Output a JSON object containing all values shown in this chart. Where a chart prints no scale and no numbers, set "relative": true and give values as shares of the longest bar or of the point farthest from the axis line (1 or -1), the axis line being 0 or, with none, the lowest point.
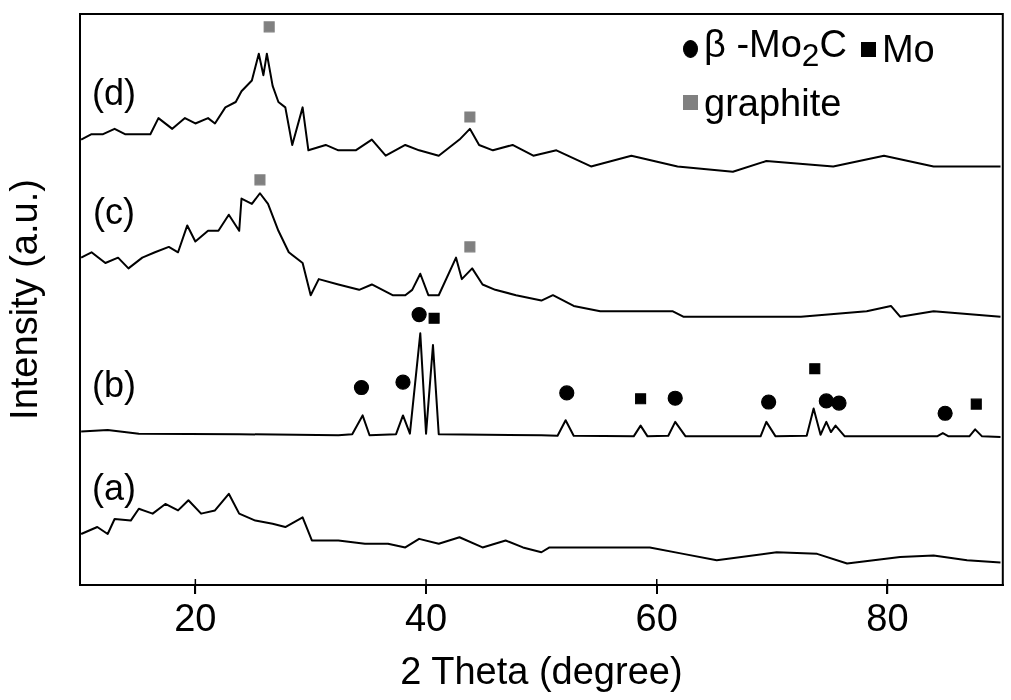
{
  "chart_data": {
    "type": "line",
    "xlabel": "2 Theta (degree)",
    "ylabel": "Intensity (a.u.)",
    "relative": true,
    "xlim": [
      10,
      90
    ],
    "xticks": [
      20,
      40,
      60,
      80
    ],
    "legend": "top right",
    "grid": false,
    "marker": "none",
    "line_style": "solid",
    "annotations": [
      "(d)",
      "(c)",
      "(b)",
      "(a)"
    ],
    "series": [
      {
        "color": "#000000",
        "x": [
          10.1,
          11.0,
          12.0,
          13.0,
          13.9,
          15.1,
          16.1,
          16.8,
          18.0,
          19.1,
          20.0,
          21.1,
          21.7,
          22.6,
          23.5,
          24.0,
          24.9,
          25.5,
          25.9,
          26.2,
          26.7,
          27.2,
          27.8,
          28.4,
          29.3,
          29.8,
          31.3,
          32.4,
          33.9,
          35.3,
          36.5,
          38.2,
          39.4,
          41.1,
          42.9,
          43.8,
          44.6,
          45.8,
          47.5,
          49.3,
          51.3,
          54.3,
          57.8,
          61.8,
          66.6,
          69.5,
          75.3,
          79.7,
          84.0,
          89.8
        ],
        "values": [
          0.79,
          0.8,
          0.8,
          0.81,
          0.8,
          0.8,
          0.8,
          0.83,
          0.81,
          0.83,
          0.82,
          0.83,
          0.82,
          0.85,
          0.86,
          0.88,
          0.9,
          0.95,
          0.91,
          0.95,
          0.89,
          0.86,
          0.85,
          0.78,
          0.85,
          0.77,
          0.78,
          0.77,
          0.77,
          0.79,
          0.76,
          0.78,
          0.77,
          0.76,
          0.79,
          0.81,
          0.78,
          0.77,
          0.78,
          0.76,
          0.77,
          0.74,
          0.76,
          0.74,
          0.73,
          0.75,
          0.74,
          0.76,
          0.74,
          0.74
        ]
      },
      {
        "color": "#000000",
        "x": [
          10.1,
          11.0,
          12.2,
          13.3,
          14.2,
          15.4,
          16.5,
          17.7,
          18.5,
          19.3,
          20.0,
          21.1,
          22.0,
          22.9,
          23.8,
          24.0,
          24.9,
          25.6,
          26.3,
          27.2,
          28.1,
          29.3,
          30.0,
          30.7,
          32.4,
          34.2,
          35.3,
          37.1,
          38.2,
          38.8,
          39.5,
          40.2,
          41.1,
          42.6,
          43.1,
          44.0,
          44.9,
          46.0,
          47.8,
          50.0,
          51.0,
          52.8,
          55.1,
          56.2,
          57.9,
          61.4,
          62.3,
          66.6,
          72.5,
          78.2,
          80.3,
          81.1,
          84.0,
          89.8
        ],
        "values": [
          0.57,
          0.58,
          0.56,
          0.57,
          0.55,
          0.57,
          0.58,
          0.59,
          0.58,
          0.63,
          0.6,
          0.62,
          0.62,
          0.65,
          0.62,
          0.68,
          0.67,
          0.69,
          0.67,
          0.62,
          0.58,
          0.56,
          0.5,
          0.53,
          0.52,
          0.51,
          0.52,
          0.5,
          0.5,
          0.51,
          0.54,
          0.5,
          0.5,
          0.57,
          0.53,
          0.55,
          0.52,
          0.51,
          0.5,
          0.49,
          0.5,
          0.48,
          0.47,
          0.47,
          0.47,
          0.47,
          0.46,
          0.46,
          0.46,
          0.47,
          0.48,
          0.46,
          0.47,
          0.46
        ]
      },
      {
        "color": "#000000",
        "x": [
          10.1,
          12.4,
          15.1,
          23.8,
          32.4,
          33.6,
          34.5,
          35.1,
          37.4,
          38.0,
          38.6,
          39.5,
          40.0,
          40.6,
          41.1,
          50.0,
          51.4,
          52.1,
          52.8,
          58.0,
          58.6,
          59.2,
          61.0,
          61.6,
          62.5,
          69.0,
          69.5,
          70.3,
          73.0,
          73.6,
          74.2,
          74.7,
          75.1,
          75.5,
          76.3,
          84.3,
          84.8,
          85.3,
          87.1,
          87.6,
          88.2,
          89.8
        ],
        "values": [
          0.246,
          0.249,
          0.242,
          0.241,
          0.239,
          0.241,
          0.276,
          0.239,
          0.241,
          0.276,
          0.242,
          0.429,
          0.242,
          0.407,
          0.241,
          0.239,
          0.238,
          0.267,
          0.238,
          0.237,
          0.257,
          0.237,
          0.238,
          0.264,
          0.237,
          0.237,
          0.264,
          0.237,
          0.238,
          0.289,
          0.24,
          0.264,
          0.245,
          0.257,
          0.237,
          0.237,
          0.243,
          0.237,
          0.237,
          0.25,
          0.237,
          0.236
        ]
      },
      {
        "color": "#000000",
        "x": [
          10.1,
          11.5,
          12.4,
          13.0,
          14.4,
          15.1,
          16.3,
          17.4,
          18.5,
          19.4,
          20.5,
          21.7,
          22.9,
          23.8,
          25.2,
          26.7,
          27.8,
          29.3,
          30.1,
          32.4,
          34.7,
          36.7,
          38.2,
          39.4,
          41.1,
          42.9,
          44.9,
          46.9,
          48.4,
          50.0,
          50.7,
          54.5,
          59.4,
          62.3,
          65.2,
          70.4,
          73.9,
          76.5,
          81.1,
          84.0,
          86.9,
          89.8
        ],
        "values": [
          0.055,
          0.068,
          0.055,
          0.083,
          0.08,
          0.102,
          0.093,
          0.111,
          0.099,
          0.118,
          0.093,
          0.099,
          0.13,
          0.093,
          0.08,
          0.074,
          0.068,
          0.086,
          0.043,
          0.043,
          0.037,
          0.037,
          0.03,
          0.046,
          0.037,
          0.049,
          0.03,
          0.043,
          0.03,
          0.021,
          0.03,
          0.03,
          0.03,
          0.018,
          0.006,
          0.021,
          0.018,
          0.0,
          0.012,
          0.015,
          0.006,
          0.002
        ]
      },
      {
        "type": "scatter",
        "name": "β -Mo$_{2}$C",
        "marker": "circle",
        "color": "#000000",
        "x": [
          34.4,
          38.0,
          39.4,
          52.2,
          61.6,
          69.7,
          74.7,
          75.8,
          85.0
        ],
        "values": [
          0.328,
          0.338,
          0.464,
          0.318,
          0.308,
          0.301,
          0.303,
          0.299,
          0.28
        ]
      },
      {
        "type": "scatter",
        "name": "Mo",
        "marker": "square",
        "color": "#000000",
        "x": [
          40.7,
          58.6,
          73.7,
          87.7
        ],
        "values": [
          0.457,
          0.307,
          0.363,
          0.297
        ]
      },
      {
        "type": "scatter",
        "name": "graphite",
        "marker": "square",
        "color": "#808080",
        "x": [
          26.4,
          43.8,
          25.6,
          43.8
        ],
        "values": [
          1.0,
          0.832,
          0.715,
          0.59
        ]
      }
    ]
  }
}
